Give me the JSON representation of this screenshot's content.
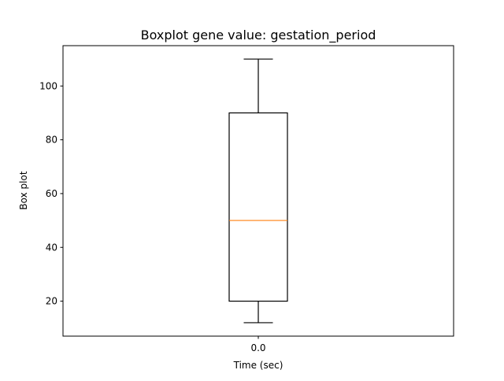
{
  "chart_data": {
    "type": "boxplot",
    "title": "Boxplot gene value: gestation_period",
    "xlabel": "Time (sec)",
    "ylabel": "Box plot",
    "categories": [
      "0.0"
    ],
    "boxes": [
      {
        "category": "0.0",
        "whisker_low": 12,
        "q1": 20,
        "median": 50,
        "q3": 90,
        "whisker_high": 110
      }
    ],
    "ylim": [
      7,
      115
    ],
    "yticks": [
      20,
      40,
      60,
      80,
      100
    ],
    "grid": false,
    "colors": {
      "box": "#000000",
      "median": "#ff7f0e",
      "axes": "#000000"
    }
  }
}
